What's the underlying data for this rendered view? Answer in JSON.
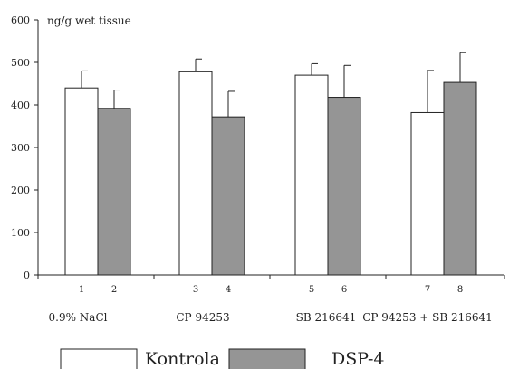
{
  "chart_data": {
    "type": "bar",
    "unit_label": "ng/g wet tissue",
    "ylim": [
      0,
      600
    ],
    "yticks": [
      0,
      100,
      200,
      300,
      400,
      500,
      600
    ],
    "categories": [
      "0.9% NaCl",
      "CP 94253",
      "SB 216641",
      "CP 94253 + SB 216641"
    ],
    "series": [
      {
        "name": "Kontrola",
        "color": "#ffffff",
        "values": [
          440,
          478,
          470,
          382
        ],
        "errors": [
          40,
          30,
          27,
          99
        ],
        "bar_numbers": [
          "1",
          "3",
          "5",
          "7"
        ]
      },
      {
        "name": "DSP-4",
        "color": "#959595",
        "values": [
          392,
          372,
          418,
          453
        ],
        "errors": [
          43,
          60,
          75,
          70
        ],
        "bar_numbers": [
          "2",
          "4",
          "6",
          "8"
        ]
      }
    ],
    "grid": false,
    "legend_position": "bottom"
  }
}
